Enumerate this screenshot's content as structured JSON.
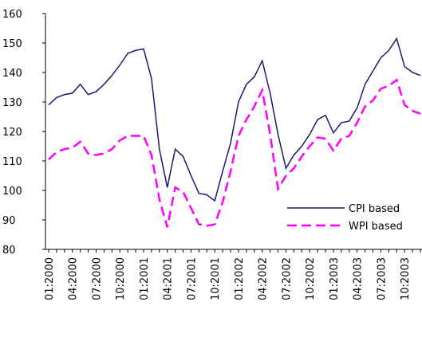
{
  "chart_data": {
    "type": "line",
    "categories": [
      "01:2000",
      null,
      null,
      "04:2000",
      null,
      null,
      "07:2000",
      null,
      null,
      "10:2000",
      null,
      null,
      "01:2001",
      null,
      null,
      "04:2001",
      null,
      null,
      "07:2001",
      null,
      null,
      "10:2001",
      null,
      null,
      "01:2002",
      null,
      null,
      "04:2002",
      null,
      null,
      "07:2002",
      null,
      null,
      "10:2002",
      null,
      null,
      "01:2003",
      null,
      null,
      "04:2003",
      null,
      null,
      "07:2003",
      null,
      null,
      "10:2003",
      null,
      null
    ],
    "series": [
      {
        "name": "CPI based",
        "color": "#1a1a6e",
        "dash": false,
        "values": [
          129,
          131.5,
          132.5,
          133,
          136,
          132.5,
          133.5,
          136,
          139,
          142.5,
          146.5,
          147.5,
          148,
          138,
          114,
          101,
          114,
          111.5,
          105,
          99,
          98.5,
          96.5,
          106.5,
          116,
          130,
          136,
          138.5,
          144,
          133,
          119,
          107.5,
          112,
          115,
          119,
          124,
          125.5,
          119.5,
          123,
          123.5,
          128,
          136,
          140.5,
          145,
          147.5,
          151.5,
          142,
          140,
          139
        ]
      },
      {
        "name": "WPI based",
        "color": "#ff00ff",
        "dash": true,
        "values": [
          110.5,
          113,
          114,
          114.5,
          116.5,
          112.5,
          112,
          112.5,
          114,
          117,
          118.5,
          118.5,
          118.5,
          112,
          97,
          87.5,
          101,
          99.5,
          94,
          88.5,
          88,
          88.5,
          96,
          106.5,
          118.5,
          124,
          128.5,
          134,
          119,
          100.5,
          105,
          107.5,
          111.5,
          115,
          118,
          117.5,
          113.5,
          117.5,
          118.5,
          123,
          128.5,
          130.5,
          134.5,
          135.5,
          137.5,
          129,
          127,
          126
        ]
      }
    ],
    "ylim": [
      80,
      160
    ],
    "yticks": [
      80,
      90,
      100,
      110,
      120,
      130,
      140,
      150,
      160
    ],
    "legend": "lower right"
  }
}
